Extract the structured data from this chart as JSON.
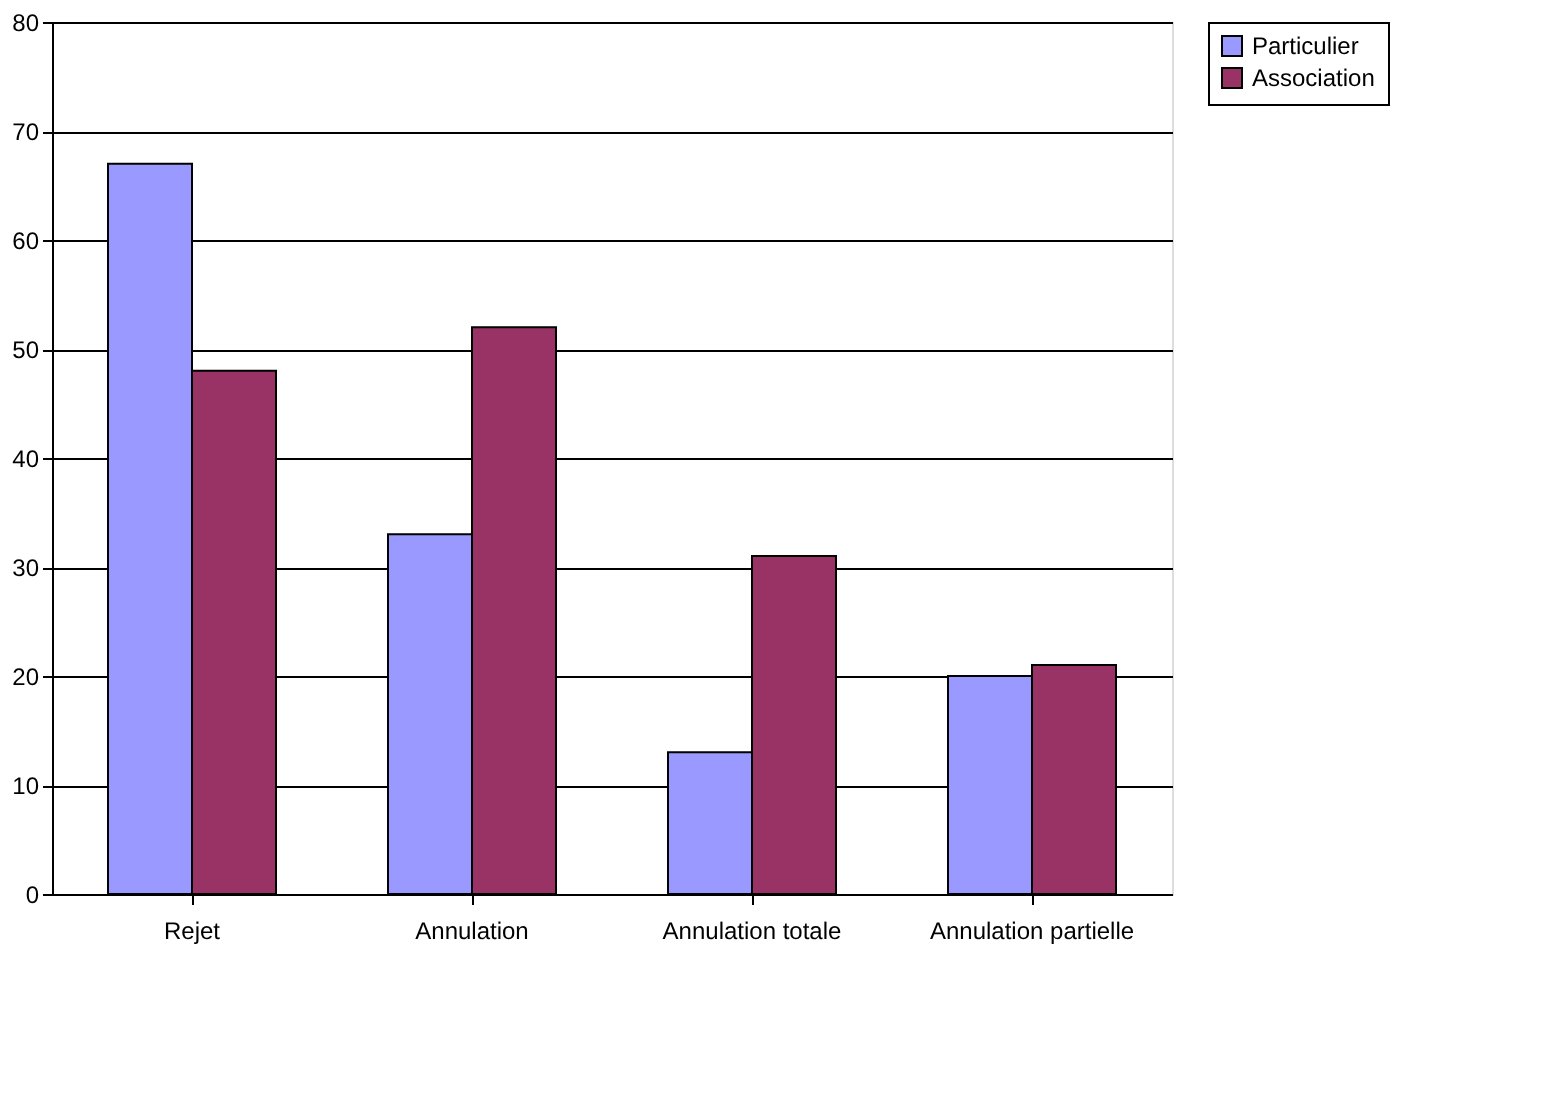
{
  "chart_data": {
    "type": "bar",
    "categories": [
      "Rejet",
      "Annulation",
      "Annulation totale",
      "Annulation partielle"
    ],
    "series": [
      {
        "name": "Particulier",
        "color": "#9999ff",
        "values": [
          67,
          33,
          13,
          20
        ]
      },
      {
        "name": "Association",
        "color": "#993366",
        "values": [
          48,
          52,
          31,
          21
        ]
      }
    ],
    "ylim": [
      0,
      80
    ],
    "yticks": [
      0,
      10,
      20,
      30,
      40,
      50,
      60,
      70,
      80
    ],
    "grid": "y",
    "legend": "right"
  }
}
